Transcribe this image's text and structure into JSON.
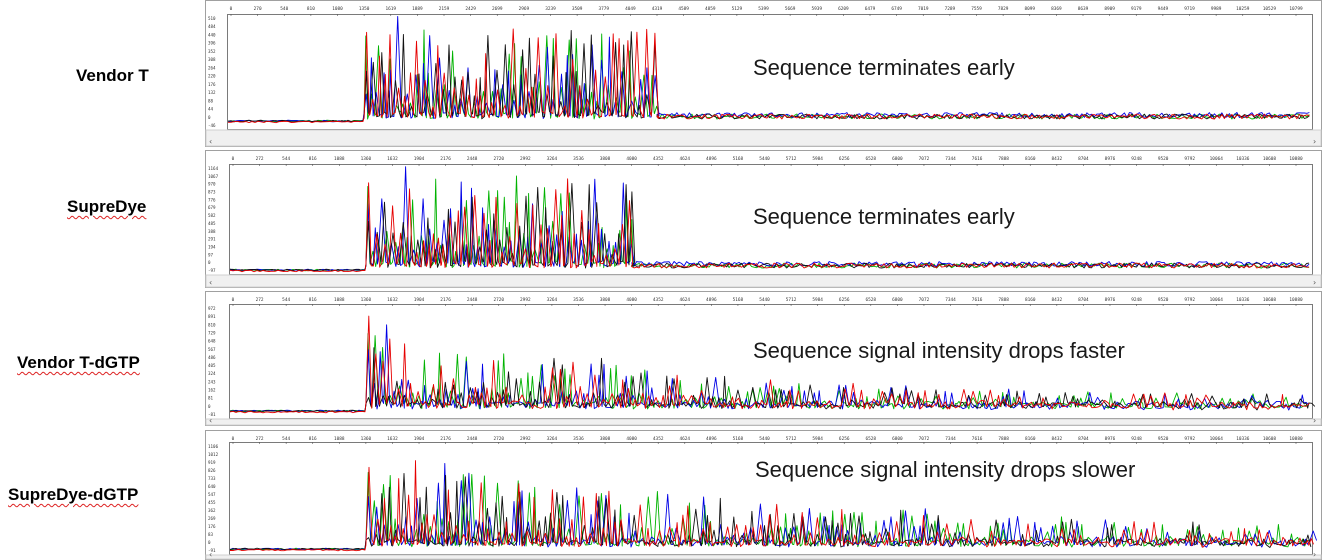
{
  "rows": [
    {
      "label": "Vendor T",
      "annotation": "Sequence terminates early",
      "spellcheck": false
    },
    {
      "label": "SupreDye",
      "annotation": "Sequence terminates early",
      "spellcheck": true
    },
    {
      "label": "Vendor T-dGTP",
      "annotation": "Sequence signal intensity drops faster",
      "spellcheck": true
    },
    {
      "label": "SupreDye-dGTP",
      "annotation": "Sequence signal intensity drops slower",
      "spellcheck": true
    }
  ],
  "colors": {
    "A": "#00b300",
    "C": "#0000e6",
    "G": "#111111",
    "T": "#e60000",
    "border": "#808080",
    "scrollbar": "#f0f0f0"
  },
  "chart_data": [
    {
      "type": "line",
      "panel": "Vendor T",
      "series_colors": [
        "#00b300",
        "#0000e6",
        "#111111",
        "#e60000"
      ],
      "x_ticks": [
        "0",
        "270",
        "540",
        "810",
        "1080",
        "1350",
        "1619",
        "1889",
        "2159",
        "2429",
        "2699",
        "2969",
        "3239",
        "3509",
        "3779",
        "4049",
        "4319",
        "4589",
        "4859",
        "5129",
        "5399",
        "5669",
        "5939",
        "6209",
        "6479",
        "6749",
        "7019",
        "7289",
        "7559",
        "7829",
        "8099",
        "8369",
        "8639",
        "8909",
        "9179",
        "9449",
        "9719",
        "9989",
        "10259",
        "10529",
        "10799"
      ],
      "y_ticks": [
        "510",
        "484",
        "440",
        "396",
        "352",
        "308",
        "264",
        "220",
        "176",
        "132",
        "88",
        "44",
        "0",
        "-46"
      ],
      "trace_start": 1350,
      "trace_end": 4319,
      "baseline": 0,
      "peak_max": 510
    },
    {
      "type": "line",
      "panel": "SupreDye",
      "series_colors": [
        "#00b300",
        "#0000e6",
        "#111111",
        "#e60000"
      ],
      "x_ticks": [
        "0",
        "272",
        "544",
        "816",
        "1088",
        "1360",
        "1632",
        "1904",
        "2176",
        "2448",
        "2720",
        "2992",
        "3264",
        "3536",
        "3808",
        "4080",
        "4352",
        "4624",
        "4896",
        "5168",
        "5440",
        "5712",
        "5984",
        "6256",
        "6528",
        "6800",
        "7072",
        "7344",
        "7616",
        "7888",
        "8160",
        "8432",
        "8704",
        "8976",
        "9248",
        "9520",
        "9792",
        "10064",
        "10336",
        "10608",
        "10880"
      ],
      "y_ticks": [
        "1164",
        "1067",
        "970",
        "873",
        "776",
        "679",
        "582",
        "485",
        "388",
        "291",
        "194",
        "97",
        "0",
        "-97"
      ],
      "trace_start": 1360,
      "trace_end": 4080,
      "baseline": 0,
      "peak_max": 1164
    },
    {
      "type": "line",
      "panel": "Vendor T-dGTP",
      "series_colors": [
        "#00b300",
        "#0000e6",
        "#111111",
        "#e60000"
      ],
      "x_ticks": [
        "0",
        "272",
        "544",
        "816",
        "1088",
        "1360",
        "1632",
        "1904",
        "2176",
        "2448",
        "2720",
        "2992",
        "3264",
        "3536",
        "3808",
        "4080",
        "4352",
        "4624",
        "4896",
        "5168",
        "5440",
        "5712",
        "5984",
        "6256",
        "6528",
        "6800",
        "7072",
        "7344",
        "7616",
        "7888",
        "8160",
        "8432",
        "8704",
        "8976",
        "9248",
        "9520",
        "9792",
        "10064",
        "10336",
        "10608",
        "10880"
      ],
      "y_ticks": [
        "972",
        "891",
        "810",
        "729",
        "648",
        "567",
        "486",
        "405",
        "324",
        "243",
        "162",
        "81",
        "0",
        "-81"
      ],
      "trace_start": 1360,
      "trace_end": 10880,
      "baseline": 0,
      "peak_max": 972
    },
    {
      "type": "line",
      "panel": "SupreDye-dGTP",
      "series_colors": [
        "#00b300",
        "#0000e6",
        "#111111",
        "#e60000"
      ],
      "x_ticks": [
        "0",
        "272",
        "544",
        "816",
        "1088",
        "1360",
        "1632",
        "1904",
        "2176",
        "2448",
        "2720",
        "2992",
        "3264",
        "3536",
        "3808",
        "4080",
        "4352",
        "4624",
        "4896",
        "5168",
        "5440",
        "5712",
        "5984",
        "6256",
        "6528",
        "6800",
        "7072",
        "7344",
        "7616",
        "7888",
        "8160",
        "8432",
        "8704",
        "8976",
        "9248",
        "9520",
        "9792",
        "10064",
        "10336",
        "10608",
        "10880"
      ],
      "y_ticks": [
        "1106",
        "1012",
        "919",
        "826",
        "733",
        "640",
        "547",
        "455",
        "362",
        "269",
        "176",
        "83",
        "0",
        "-91"
      ],
      "trace_start": 1360,
      "trace_end": 10880,
      "baseline": 0,
      "peak_max": 1106
    }
  ]
}
